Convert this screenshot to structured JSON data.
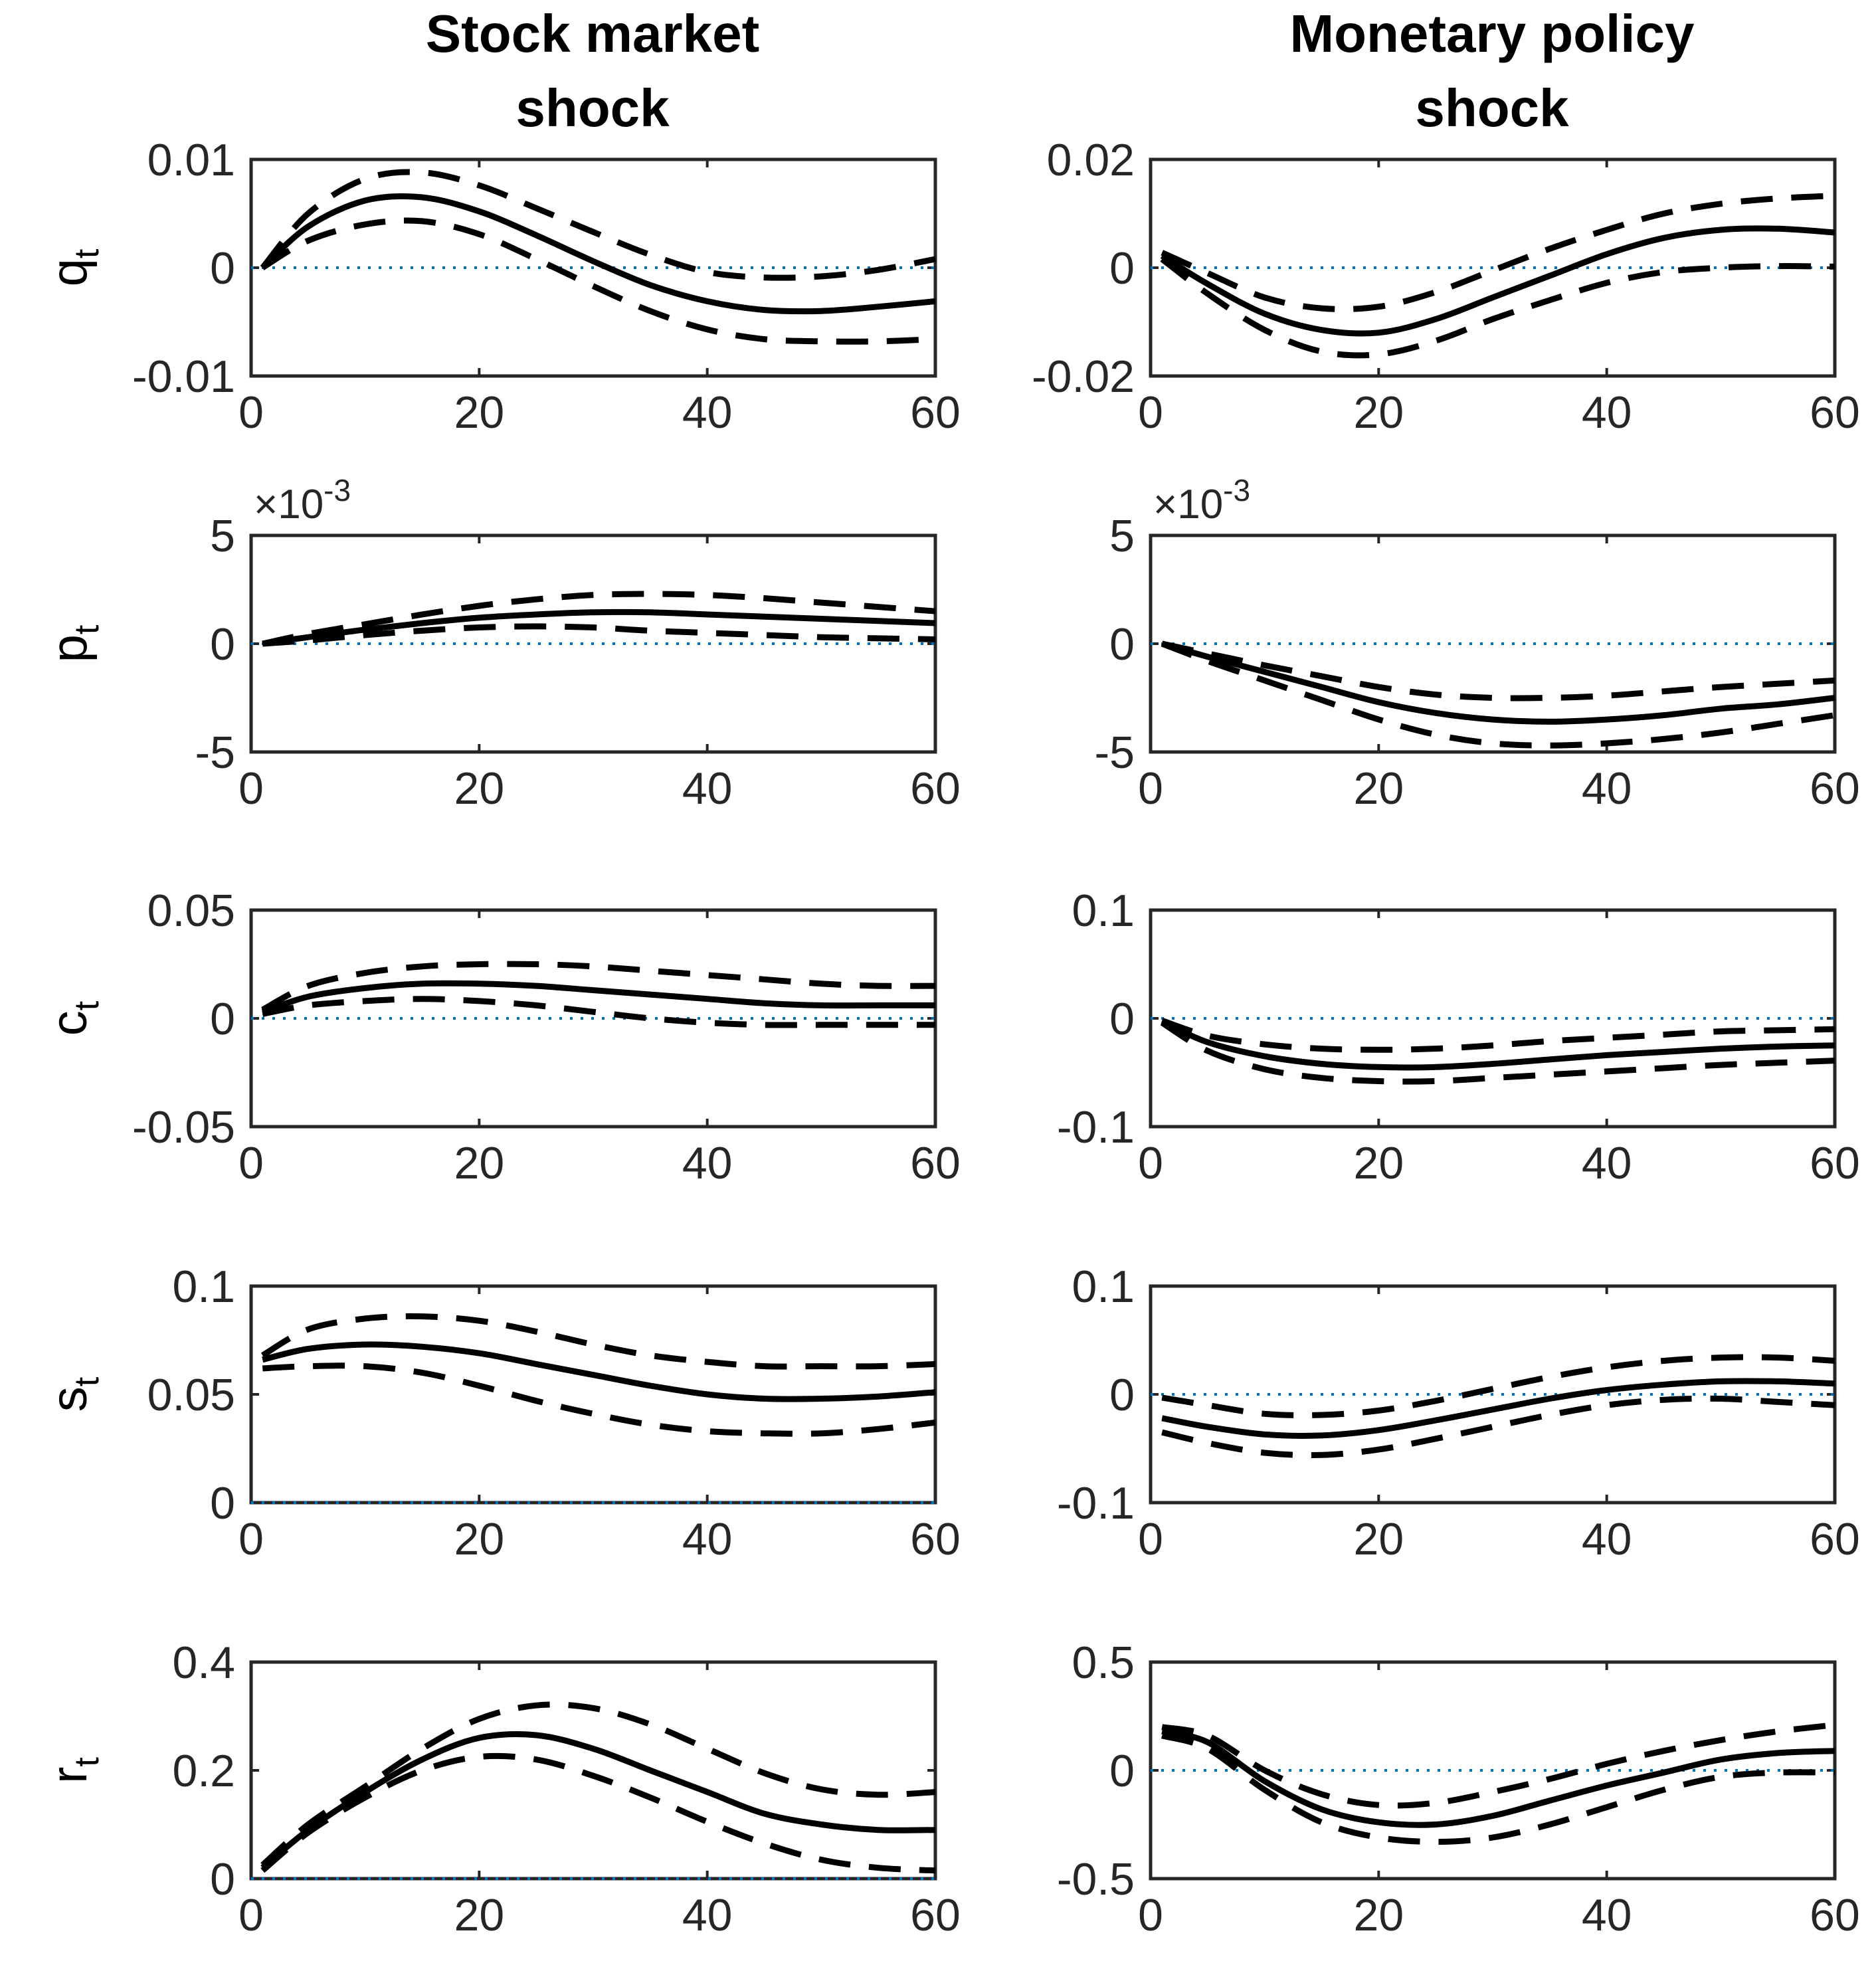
{
  "chart_data": {
    "type": "line",
    "columns": [
      {
        "title_lines": [
          "Stock market",
          "shock"
        ]
      },
      {
        "title_lines": [
          "Monetary policy",
          "shock"
        ]
      }
    ],
    "horizon_points": [
      1,
      5,
      10,
      15,
      20,
      25,
      30,
      35,
      40,
      45,
      50,
      55,
      60
    ],
    "panels": [
      {
        "row": 0,
        "col": 0,
        "ylabel": "q",
        "ylabel_sub": "t",
        "ylim": [
          -0.01,
          0.01
        ],
        "yticks": [
          -0.01,
          0,
          0.01
        ],
        "ytick_labels": [
          "-0.01",
          "0",
          "0.01"
        ],
        "xlim": [
          0,
          60
        ],
        "xticks": [
          0,
          20,
          40,
          60
        ],
        "xtick_labels": [
          "0",
          "20",
          "40",
          "60"
        ],
        "exponent": null,
        "series": [
          {
            "name": "Median",
            "style": "solid",
            "values": [
              0,
              0.0038,
              0.0062,
              0.0065,
              0.0052,
              0.003,
              0.0006,
              -0.0016,
              -0.0031,
              -0.0039,
              -0.004,
              -0.0036,
              -0.0031
            ]
          },
          {
            "name": "Upper band",
            "style": "dashed",
            "values": [
              0,
              0.005,
              0.0082,
              0.0088,
              0.0076,
              0.0055,
              0.0033,
              0.0012,
              -0.0004,
              -0.0009,
              -0.0008,
              -0.0002,
              0.0008
            ]
          },
          {
            "name": "Lower band",
            "style": "dashed",
            "values": [
              0,
              0.0025,
              0.004,
              0.0043,
              0.0031,
              0.0008,
              -0.0017,
              -0.004,
              -0.0057,
              -0.0066,
              -0.0068,
              -0.0068,
              -0.0066
            ]
          }
        ]
      },
      {
        "row": 0,
        "col": 1,
        "ylabel": "",
        "ylabel_sub": "",
        "ylim": [
          -0.02,
          0.02
        ],
        "yticks": [
          -0.02,
          0,
          0.02
        ],
        "ytick_labels": [
          "-0.02",
          "0",
          "0.02"
        ],
        "xlim": [
          0,
          60
        ],
        "xticks": [
          0,
          20,
          40,
          60
        ],
        "xtick_labels": [
          "0",
          "20",
          "40",
          "60"
        ],
        "exponent": null,
        "series": [
          {
            "name": "Median",
            "style": "solid",
            "values": [
              0.0022,
              -0.003,
              -0.0085,
              -0.0115,
              -0.012,
              -0.0095,
              -0.0055,
              -0.0015,
              0.0025,
              0.0055,
              0.007,
              0.0072,
              0.0065
            ]
          },
          {
            "name": "Upper band",
            "style": "dashed",
            "values": [
              0.0028,
              -0.001,
              -0.0055,
              -0.0075,
              -0.0072,
              -0.0045,
              -0.0005,
              0.0035,
              0.007,
              0.01,
              0.0118,
              0.0128,
              0.0133
            ]
          },
          {
            "name": "Lower band",
            "style": "dashed",
            "values": [
              0.0016,
              -0.0048,
              -0.0115,
              -0.0155,
              -0.016,
              -0.0135,
              -0.0095,
              -0.006,
              -0.0028,
              -0.0008,
              0.0,
              0.0003,
              0.0002
            ]
          }
        ]
      },
      {
        "row": 1,
        "col": 0,
        "ylabel": "p",
        "ylabel_sub": "t",
        "ylim": [
          -5,
          5
        ],
        "yticks": [
          -5,
          0,
          5
        ],
        "ytick_labels": [
          "-5",
          "0",
          "5"
        ],
        "xlim": [
          0,
          60
        ],
        "xticks": [
          0,
          20,
          40,
          60
        ],
        "xtick_labels": [
          "0",
          "20",
          "40",
          "60"
        ],
        "exponent": {
          "base": "×10",
          "power": "-3"
        },
        "series": [
          {
            "name": "Median",
            "style": "solid",
            "values": [
              0,
              0.3,
              0.65,
              0.95,
              1.2,
              1.35,
              1.45,
              1.45,
              1.35,
              1.25,
              1.15,
              1.05,
              0.95
            ]
          },
          {
            "name": "Upper band",
            "style": "dashed",
            "values": [
              0,
              0.45,
              0.9,
              1.35,
              1.75,
              2.05,
              2.25,
              2.3,
              2.25,
              2.1,
              1.9,
              1.7,
              1.5
            ]
          },
          {
            "name": "Lower band",
            "style": "dashed",
            "values": [
              0,
              0.15,
              0.4,
              0.6,
              0.75,
              0.8,
              0.75,
              0.6,
              0.5,
              0.4,
              0.3,
              0.25,
              0.2
            ]
          }
        ]
      },
      {
        "row": 1,
        "col": 1,
        "ylabel": "",
        "ylabel_sub": "",
        "ylim": [
          -5,
          5
        ],
        "yticks": [
          -5,
          0,
          5
        ],
        "ytick_labels": [
          "-5",
          "0",
          "5"
        ],
        "xlim": [
          0,
          60
        ],
        "xticks": [
          0,
          20,
          40,
          60
        ],
        "xtick_labels": [
          "0",
          "20",
          "40",
          "60"
        ],
        "exponent": {
          "base": "×10",
          "power": "-3"
        },
        "series": [
          {
            "name": "Median",
            "style": "solid",
            "values": [
              0,
              -0.6,
              -1.3,
              -2.0,
              -2.7,
              -3.2,
              -3.5,
              -3.6,
              -3.5,
              -3.3,
              -3.0,
              -2.8,
              -2.5
            ]
          },
          {
            "name": "Upper band",
            "style": "dashed",
            "values": [
              0,
              -0.45,
              -1.0,
              -1.5,
              -2.0,
              -2.35,
              -2.5,
              -2.5,
              -2.4,
              -2.2,
              -2.0,
              -1.85,
              -1.7
            ]
          },
          {
            "name": "Lower band",
            "style": "dashed",
            "values": [
              0,
              -0.8,
              -1.7,
              -2.6,
              -3.5,
              -4.2,
              -4.6,
              -4.7,
              -4.6,
              -4.4,
              -4.1,
              -3.7,
              -3.3
            ]
          }
        ]
      },
      {
        "row": 2,
        "col": 0,
        "ylabel": "c",
        "ylabel_sub": "t",
        "ylim": [
          -0.05,
          0.05
        ],
        "yticks": [
          -0.05,
          0,
          0.05
        ],
        "ytick_labels": [
          "-0.05",
          "0",
          "0.05"
        ],
        "xlim": [
          0,
          60
        ],
        "xticks": [
          0,
          20,
          40,
          60
        ],
        "xtick_labels": [
          "0",
          "20",
          "40",
          "60"
        ],
        "exponent": null,
        "series": [
          {
            "name": "Median",
            "style": "solid",
            "values": [
              0.003,
              0.01,
              0.014,
              0.016,
              0.016,
              0.015,
              0.013,
              0.011,
              0.009,
              0.007,
              0.006,
              0.006,
              0.006
            ]
          },
          {
            "name": "Upper band",
            "style": "dashed",
            "values": [
              0.004,
              0.015,
              0.021,
              0.024,
              0.025,
              0.025,
              0.024,
              0.022,
              0.02,
              0.018,
              0.016,
              0.015,
              0.015
            ]
          },
          {
            "name": "Lower band",
            "style": "dashed",
            "values": [
              0.002,
              0.006,
              0.008,
              0.009,
              0.008,
              0.006,
              0.003,
              0.0,
              -0.002,
              -0.003,
              -0.003,
              -0.003,
              -0.003
            ]
          }
        ]
      },
      {
        "row": 2,
        "col": 1,
        "ylabel": "",
        "ylabel_sub": "",
        "ylim": [
          -0.1,
          0.1
        ],
        "yticks": [
          -0.1,
          0,
          0.1
        ],
        "ytick_labels": [
          "-0.1",
          "0",
          "0.1"
        ],
        "xlim": [
          0,
          60
        ],
        "xticks": [
          0,
          20,
          40,
          60
        ],
        "xtick_labels": [
          "0",
          "20",
          "40",
          "60"
        ],
        "exponent": null,
        "series": [
          {
            "name": "Median",
            "style": "solid",
            "values": [
              -0.003,
              -0.022,
              -0.035,
              -0.042,
              -0.045,
              -0.045,
              -0.042,
              -0.038,
              -0.034,
              -0.031,
              -0.028,
              -0.026,
              -0.025
            ]
          },
          {
            "name": "Upper band",
            "style": "dashed",
            "values": [
              -0.002,
              -0.016,
              -0.024,
              -0.028,
              -0.029,
              -0.028,
              -0.025,
              -0.021,
              -0.018,
              -0.015,
              -0.012,
              -0.011,
              -0.01
            ]
          },
          {
            "name": "Lower band",
            "style": "dashed",
            "values": [
              -0.004,
              -0.03,
              -0.047,
              -0.055,
              -0.058,
              -0.058,
              -0.055,
              -0.052,
              -0.049,
              -0.046,
              -0.043,
              -0.041,
              -0.039
            ]
          }
        ]
      },
      {
        "row": 3,
        "col": 0,
        "ylabel": "s",
        "ylabel_sub": "t",
        "ylim": [
          0,
          0.1
        ],
        "yticks": [
          0,
          0.05,
          0.1
        ],
        "ytick_labels": [
          "0",
          "0.05",
          "0.1"
        ],
        "xlim": [
          0,
          60
        ],
        "xticks": [
          0,
          20,
          40,
          60
        ],
        "xtick_labels": [
          "0",
          "20",
          "40",
          "60"
        ],
        "exponent": null,
        "series": [
          {
            "name": "Median",
            "style": "solid",
            "values": [
              0.066,
              0.071,
              0.073,
              0.072,
              0.069,
              0.064,
              0.059,
              0.054,
              0.05,
              0.048,
              0.048,
              0.049,
              0.051
            ]
          },
          {
            "name": "Upper band",
            "style": "dashed",
            "values": [
              0.068,
              0.08,
              0.085,
              0.086,
              0.084,
              0.079,
              0.073,
              0.068,
              0.065,
              0.063,
              0.063,
              0.063,
              0.064
            ]
          },
          {
            "name": "Lower band",
            "style": "dashed",
            "values": [
              0.062,
              0.063,
              0.063,
              0.06,
              0.054,
              0.047,
              0.041,
              0.036,
              0.033,
              0.032,
              0.032,
              0.034,
              0.037
            ]
          }
        ]
      },
      {
        "row": 3,
        "col": 1,
        "ylabel": "",
        "ylabel_sub": "",
        "ylim": [
          -0.1,
          0.1
        ],
        "yticks": [
          -0.1,
          0,
          0.1
        ],
        "ytick_labels": [
          "-0.1",
          "0",
          "0.1"
        ],
        "xlim": [
          0,
          60
        ],
        "xticks": [
          0,
          20,
          40,
          60
        ],
        "xtick_labels": [
          "0",
          "20",
          "40",
          "60"
        ],
        "exponent": null,
        "series": [
          {
            "name": "Median",
            "style": "solid",
            "values": [
              -0.022,
              -0.03,
              -0.037,
              -0.038,
              -0.033,
              -0.024,
              -0.014,
              -0.004,
              0.004,
              0.009,
              0.012,
              0.012,
              0.01
            ]
          },
          {
            "name": "Upper band",
            "style": "dashed",
            "values": [
              -0.003,
              -0.01,
              -0.018,
              -0.019,
              -0.015,
              -0.006,
              0.005,
              0.016,
              0.025,
              0.031,
              0.034,
              0.034,
              0.031
            ]
          },
          {
            "name": "Lower band",
            "style": "dashed",
            "values": [
              -0.035,
              -0.045,
              -0.054,
              -0.056,
              -0.051,
              -0.041,
              -0.03,
              -0.019,
              -0.01,
              -0.005,
              -0.004,
              -0.007,
              -0.01
            ]
          }
        ]
      },
      {
        "row": 4,
        "col": 0,
        "ylabel": "r",
        "ylabel_sub": "t",
        "ylim": [
          0,
          0.4
        ],
        "yticks": [
          0,
          0.2,
          0.4
        ],
        "ytick_labels": [
          "0",
          "0.2",
          "0.4"
        ],
        "xlim": [
          0,
          60
        ],
        "xticks": [
          0,
          20,
          40,
          60
        ],
        "xtick_labels": [
          "0",
          "20",
          "40",
          "60"
        ],
        "exponent": null,
        "series": [
          {
            "name": "Median",
            "style": "solid",
            "values": [
              0.02,
              0.09,
              0.16,
              0.22,
              0.26,
              0.265,
              0.24,
              0.2,
              0.16,
              0.12,
              0.1,
              0.09,
              0.09
            ]
          },
          {
            "name": "Upper band",
            "style": "dashed",
            "values": [
              0.025,
              0.1,
              0.17,
              0.24,
              0.295,
              0.32,
              0.315,
              0.285,
              0.24,
              0.195,
              0.165,
              0.155,
              0.16
            ]
          },
          {
            "name": "Lower band",
            "style": "dashed",
            "values": [
              0.015,
              0.085,
              0.15,
              0.2,
              0.225,
              0.22,
              0.19,
              0.15,
              0.105,
              0.065,
              0.035,
              0.02,
              0.015
            ]
          }
        ]
      },
      {
        "row": 4,
        "col": 1,
        "ylabel": "",
        "ylabel_sub": "",
        "ylim": [
          -0.5,
          0.5
        ],
        "yticks": [
          -0.5,
          0,
          0.5
        ],
        "ytick_labels": [
          "-0.5",
          "0",
          "0.5"
        ],
        "xlim": [
          0,
          60
        ],
        "xticks": [
          0,
          20,
          40,
          60
        ],
        "xtick_labels": [
          "0",
          "20",
          "40",
          "60"
        ],
        "exponent": null,
        "series": [
          {
            "name": "Median",
            "style": "solid",
            "values": [
              0.18,
              0.13,
              -0.05,
              -0.18,
              -0.24,
              -0.25,
              -0.21,
              -0.14,
              -0.07,
              -0.01,
              0.05,
              0.08,
              0.09
            ]
          },
          {
            "name": "Upper band",
            "style": "dashed",
            "values": [
              0.2,
              0.16,
              0.0,
              -0.11,
              -0.16,
              -0.15,
              -0.1,
              -0.04,
              0.03,
              0.09,
              0.14,
              0.18,
              0.21
            ]
          },
          {
            "name": "Lower band",
            "style": "dashed",
            "values": [
              0.16,
              0.1,
              -0.09,
              -0.24,
              -0.31,
              -0.33,
              -0.31,
              -0.25,
              -0.17,
              -0.09,
              -0.03,
              -0.01,
              -0.01
            ]
          }
        ]
      }
    ]
  }
}
